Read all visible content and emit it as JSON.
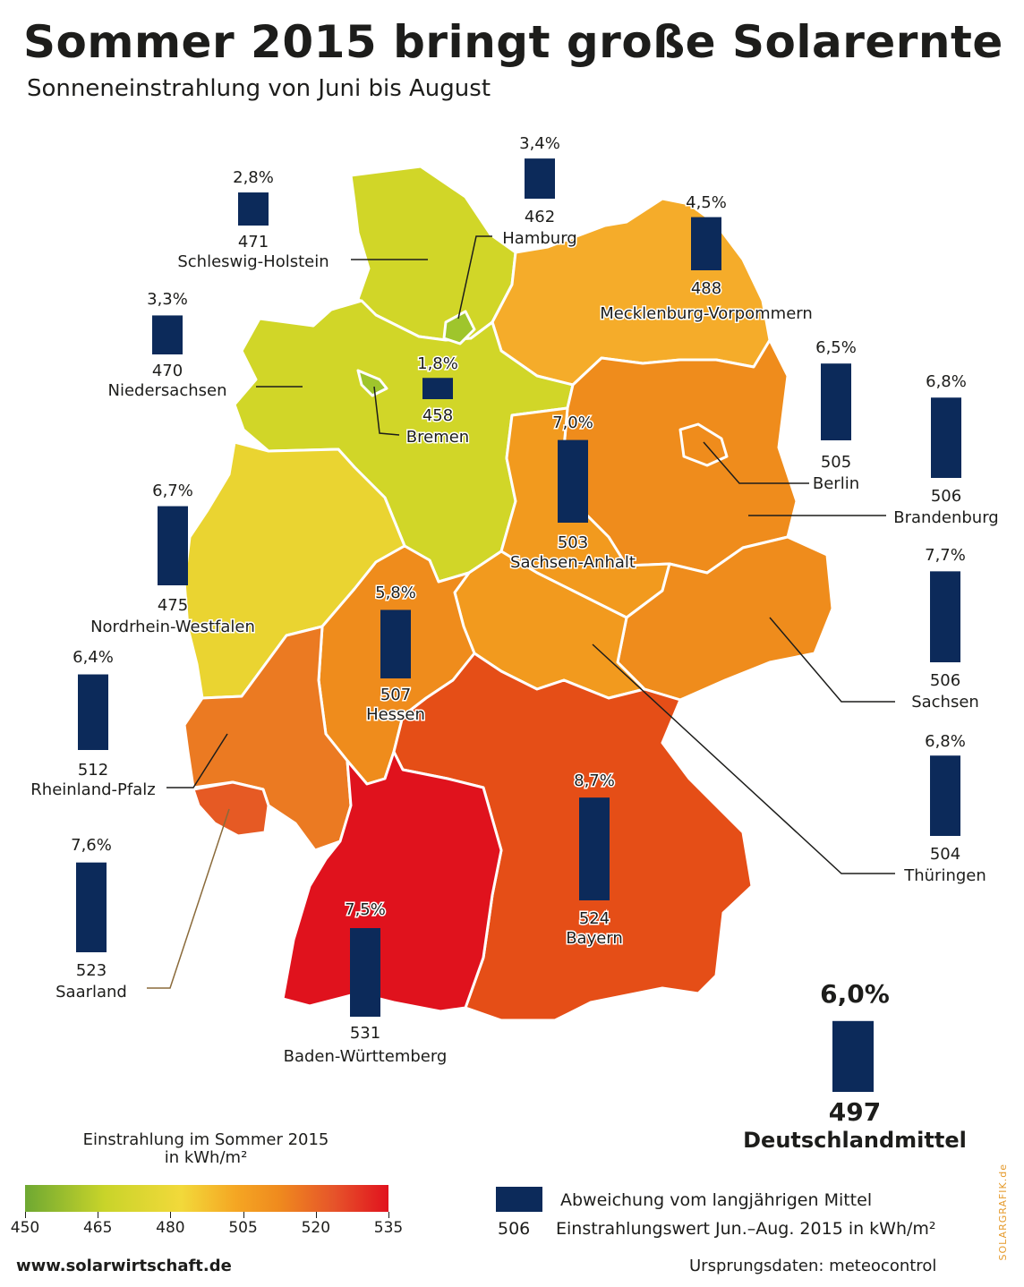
{
  "header": {
    "title": "Sommer 2015 bringt große Solarernte",
    "subtitle": "Sonneneinstrahlung von Juni bis August"
  },
  "colors": {
    "bar": "#0c2a5a",
    "scale": [
      "#6ea832",
      "#c9d42a",
      "#f2d93a",
      "#f5a623",
      "#ef8a1e",
      "#e6542a",
      "#e1121e"
    ]
  },
  "regions": [
    {
      "name": "Schleswig-Holstein",
      "value": "471",
      "pct": "2,8%",
      "pct_value": 2.8,
      "fill": "#d1d628"
    },
    {
      "name": "Hamburg",
      "value": "462",
      "pct": "3,4%",
      "pct_value": 3.4,
      "fill": "#9fc52c"
    },
    {
      "name": "Mecklenburg-Vorpommern",
      "value": "488",
      "pct": "4,5%",
      "pct_value": 4.5,
      "fill": "#f5ac2a"
    },
    {
      "name": "Niedersachsen",
      "value": "470",
      "pct": "3,3%",
      "pct_value": 3.3,
      "fill": "#d1d628"
    },
    {
      "name": "Bremen",
      "value": "458",
      "pct": "1,8%",
      "pct_value": 1.8,
      "fill": "#9fc52c"
    },
    {
      "name": "Berlin",
      "value": "505",
      "pct": "6,5%",
      "pct_value": 6.5,
      "fill": "#ef8c1c"
    },
    {
      "name": "Brandenburg",
      "value": "506",
      "pct": "6,8%",
      "pct_value": 6.8,
      "fill": "#ef8c1c"
    },
    {
      "name": "Sachsen-Anhalt",
      "value": "503",
      "pct": "7,0%",
      "pct_value": 7.0,
      "fill": "#f29a1e"
    },
    {
      "name": "Nordrhein-Westfalen",
      "value": "475",
      "pct": "6,7%",
      "pct_value": 6.7,
      "fill": "#ead431"
    },
    {
      "name": "Sachsen",
      "value": "506",
      "pct": "7,7%",
      "pct_value": 7.7,
      "fill": "#ef8c1c"
    },
    {
      "name": "Hessen",
      "value": "507",
      "pct": "5,8%",
      "pct_value": 5.8,
      "fill": "#ef8c1c"
    },
    {
      "name": "Thüringen",
      "value": "504",
      "pct": "6,8%",
      "pct_value": 6.8,
      "fill": "#f29a1e"
    },
    {
      "name": "Rheinland-Pfalz",
      "value": "512",
      "pct": "6,4%",
      "pct_value": 6.4,
      "fill": "#eb7a22"
    },
    {
      "name": "Saarland",
      "value": "523",
      "pct": "7,6%",
      "pct_value": 7.6,
      "fill": "#e65a24"
    },
    {
      "name": "Bayern",
      "value": "524",
      "pct": "8,7%",
      "pct_value": 8.7,
      "fill": "#e54e17"
    },
    {
      "name": "Baden-Württemberg",
      "value": "531",
      "pct": "7,5%",
      "pct_value": 7.5,
      "fill": "#e0121d"
    }
  ],
  "average": {
    "pct": "6,0%",
    "pct_value": 6.0,
    "value": "497",
    "label": "Deutschlandmittel"
  },
  "legend": {
    "title_line1": "Einstrahlung im Sommer 2015",
    "title_line2": "in kWh/m²",
    "ticks": [
      "450",
      "465",
      "480",
      "505",
      "520",
      "535"
    ],
    "bar_text": "Abweichung vom langjährigen Mittel",
    "num_example": "506",
    "num_text": "Einstrahlungswert Jun.–Aug. 2015 in kWh/m²"
  },
  "footer": {
    "url": "www.solarwirtschaft.de",
    "source": "Ursprungsdaten: meteocontrol",
    "credit": "SOLARGRAFIK.de"
  }
}
